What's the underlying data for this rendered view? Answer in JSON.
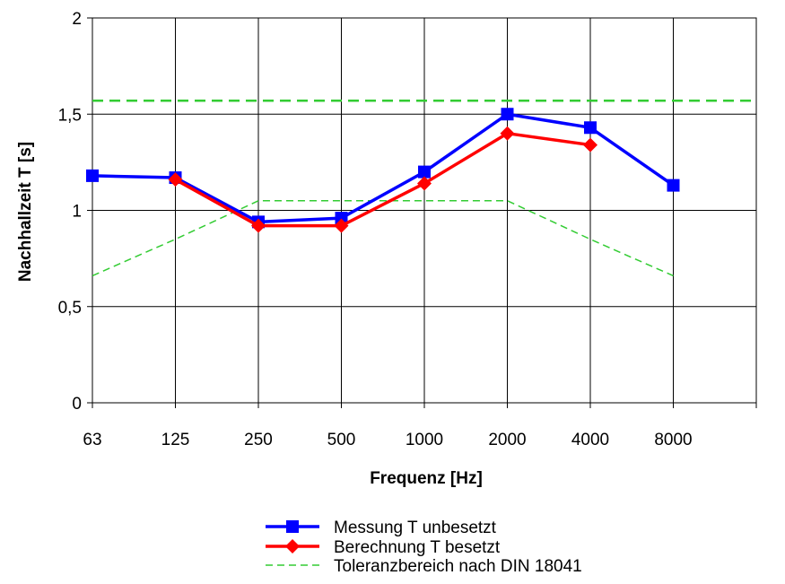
{
  "chart_data": {
    "type": "line",
    "categories": [
      "63",
      "125",
      "250",
      "500",
      "1000",
      "2000",
      "4000",
      "8000"
    ],
    "xlabel": "Frequenz [Hz]",
    "ylabel": "Nachhallzeit T [s]",
    "ylim": [
      0,
      2
    ],
    "yticks": [
      {
        "value": 0,
        "label": "0"
      },
      {
        "value": 0.5,
        "label": "0,5"
      },
      {
        "value": 1,
        "label": "1"
      },
      {
        "value": 1.5,
        "label": "1,5"
      },
      {
        "value": 2,
        "label": "2"
      }
    ],
    "grid": true,
    "legend_position": "bottom",
    "series": [
      {
        "name": "Messung T unbesetzt",
        "color": "#0000ff",
        "marker": "square",
        "values": [
          1.18,
          1.17,
          0.94,
          0.96,
          1.2,
          1.5,
          1.43,
          1.13
        ]
      },
      {
        "name": "Berechnung T besetzt",
        "color": "#ff0000",
        "marker": "diamond",
        "values": [
          null,
          1.16,
          0.92,
          0.92,
          1.14,
          1.4,
          1.34,
          null
        ]
      }
    ],
    "tolerance": {
      "name": "Toleranzbereich nach DIN 18041",
      "color": "#33cc33",
      "style": "dashed",
      "upper": [
        1.57,
        1.57,
        1.57,
        1.57,
        1.57,
        1.57,
        1.57,
        1.57
      ],
      "lower": [
        0.66,
        0.85,
        1.05,
        1.05,
        1.05,
        1.05,
        0.85,
        0.66
      ]
    }
  }
}
